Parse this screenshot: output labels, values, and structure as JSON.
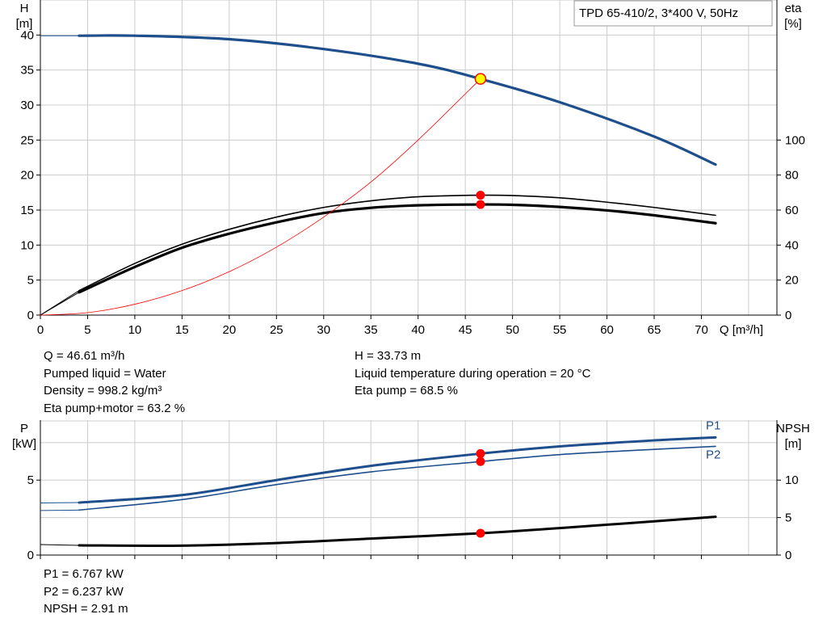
{
  "colors": {
    "grid": "#cccccc",
    "axis": "#000000",
    "blue": "#1f4e8c",
    "black": "#000000",
    "eta_line": "#ff0000",
    "dot": "#ff0000",
    "op_fill": "#ffff00",
    "op_stroke": "#ff0000"
  },
  "results": {
    "q": "Q = 46.61 m³/h",
    "liquid": "Pumped liquid = Water",
    "density": "Density = 998.2 kg/m³",
    "eta_total": "Eta pump+motor = 63.2 %",
    "h": "H = 33.73 m",
    "temperature": "Liquid temperature during operation = 20 °C",
    "eta_pump": "Eta pump = 68.5 %",
    "p1": "P1 = 6.767 kW",
    "p2": "P2 = 6.237 kW",
    "npsh": "NPSH = 2.91 m"
  },
  "chart_data": [
    {
      "type": "line",
      "title": "TPD 65-410/2, 3*400 V, 50Hz",
      "xlabel": "Q [m³/h]",
      "ylabel": "H",
      "ylabel_unit": "[m]",
      "y2label": "eta",
      "y2label_unit": "[%]",
      "xlim": [
        0,
        78
      ],
      "ylim": [
        0,
        45
      ],
      "y2lim": [
        0,
        180
      ],
      "xticks": [
        0,
        5,
        10,
        15,
        20,
        25,
        30,
        35,
        40,
        45,
        50,
        55,
        60,
        65,
        70
      ],
      "yticks": [
        0,
        5,
        10,
        15,
        20,
        25,
        30,
        35,
        40
      ],
      "y2ticks": [
        0,
        20,
        40,
        60,
        80,
        100
      ],
      "grid": true,
      "series": [
        {
          "key": "H",
          "axis": "y",
          "color": "#1f4e8c",
          "width": 3.2,
          "x": [
            4.1,
            10,
            20,
            30,
            40,
            46.61,
            55,
            65,
            71.5
          ],
          "y": [
            39.9,
            39.9,
            39.4,
            38.0,
            35.9,
            33.73,
            30.4,
            25.5,
            21.5
          ]
        },
        {
          "key": "eta_pump",
          "axis": "y2",
          "color": "#000000",
          "width": 1.6,
          "x": [
            4.1,
            10,
            15,
            20,
            25,
            30,
            35,
            40,
            46.61,
            50,
            55,
            60,
            65,
            71.5
          ],
          "y": [
            14,
            29.5,
            40.5,
            49,
            56,
            61.5,
            65.3,
            67.6,
            68.5,
            68.3,
            67,
            64.5,
            61.5,
            57
          ]
        },
        {
          "key": "eta_total",
          "axis": "y2",
          "color": "#000000",
          "width": 3.2,
          "x": [
            4.1,
            10,
            15,
            20,
            25,
            30,
            35,
            40,
            46.61,
            50,
            55,
            60,
            65,
            71.5
          ],
          "y": [
            13,
            27.5,
            38.5,
            46.5,
            53,
            58.3,
            61.3,
            62.7,
            63.2,
            63,
            61.8,
            59.8,
            57,
            52.5
          ]
        },
        {
          "key": "system",
          "axis": "y",
          "color": "#ff0000",
          "width": 0.8,
          "x": [
            0,
            5,
            10,
            15,
            20,
            25,
            30,
            35,
            40,
            46.61
          ],
          "y": [
            0,
            0.35,
            1.55,
            3.5,
            6.2,
            9.7,
            14.0,
            19.0,
            25.0,
            33.73
          ]
        }
      ],
      "operating_points": [
        {
          "x": 46.61,
          "y": 33.73,
          "axis": "y",
          "style": "op"
        },
        {
          "x": 46.61,
          "y": 68.5,
          "axis": "y2",
          "style": "dot"
        },
        {
          "x": 46.61,
          "y": 63.2,
          "axis": "y2",
          "style": "dot"
        }
      ]
    },
    {
      "type": "line",
      "ylabel": "P",
      "ylabel_unit": "[kW]",
      "y2label": "NPSH",
      "y2label_unit": "[m]",
      "xlim": [
        0,
        78
      ],
      "ylim": [
        0,
        9
      ],
      "y2lim": [
        0,
        18
      ],
      "yticks": [
        0,
        5
      ],
      "y2ticks": [
        0,
        5,
        10
      ],
      "grid": true,
      "series": [
        {
          "key": "P1",
          "name": "P1",
          "axis": "y",
          "color": "#1f4e8c",
          "width": 3,
          "x": [
            4.1,
            15,
            25,
            35,
            46.61,
            55,
            65,
            71.5
          ],
          "y": [
            3.5,
            4.0,
            5.0,
            5.95,
            6.767,
            7.25,
            7.65,
            7.85
          ]
        },
        {
          "key": "P2",
          "name": "P2",
          "axis": "y",
          "color": "#1f4e8c",
          "width": 1.6,
          "x": [
            4.1,
            15,
            25,
            35,
            46.61,
            55,
            65,
            71.5
          ],
          "y": [
            3.0,
            3.7,
            4.7,
            5.55,
            6.237,
            6.7,
            7.05,
            7.25
          ]
        },
        {
          "key": "NPSH",
          "axis": "y2",
          "color": "#000000",
          "width": 3,
          "x": [
            4.1,
            15,
            25,
            35,
            46.61,
            55,
            65,
            71.5
          ],
          "y": [
            1.3,
            1.25,
            1.6,
            2.2,
            2.91,
            3.6,
            4.5,
            5.1
          ]
        }
      ],
      "operating_points": [
        {
          "x": 46.61,
          "y": 6.767,
          "axis": "y",
          "style": "dot"
        },
        {
          "x": 46.61,
          "y": 6.237,
          "axis": "y",
          "style": "dot"
        },
        {
          "x": 46.61,
          "y": 2.91,
          "axis": "y2",
          "style": "dot"
        }
      ]
    }
  ]
}
